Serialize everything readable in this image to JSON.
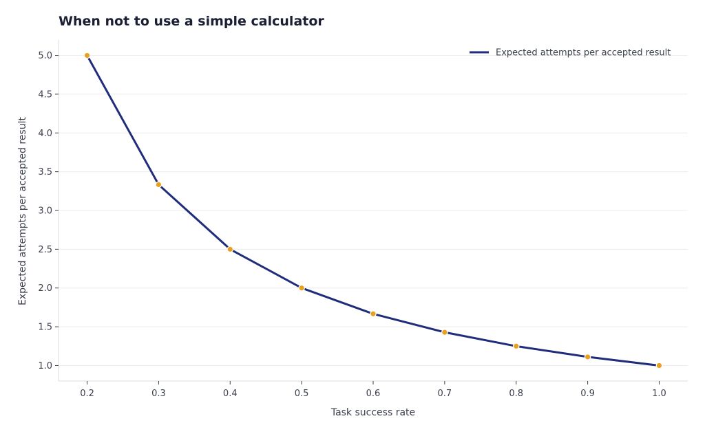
{
  "title": "When not to use a simple calculator",
  "colors": {
    "line": "#1f2d7a",
    "marker": "#e8a020",
    "marker_edge": "#ffffff",
    "grid": "#ececec",
    "axis": "#dddddd",
    "text": "#3a3f4b",
    "title": "#1a1f33"
  },
  "chart_data": {
    "type": "line",
    "title": "When not to use a simple calculator",
    "xlabel": "Task success rate",
    "ylabel": "Expected attempts per accepted result",
    "x": [
      0.2,
      0.3,
      0.4,
      0.5,
      0.6,
      0.7,
      0.8,
      0.9,
      1.0
    ],
    "series": [
      {
        "name": "Expected attempts per accepted result",
        "values": [
          5.0,
          3.333,
          2.5,
          2.0,
          1.667,
          1.429,
          1.25,
          1.111,
          1.0
        ]
      }
    ],
    "xticks": [
      "0.2",
      "0.3",
      "0.4",
      "0.5",
      "0.6",
      "0.7",
      "0.8",
      "0.9",
      "1.0"
    ],
    "yticks": [
      "1.0",
      "1.5",
      "2.0",
      "2.5",
      "3.0",
      "3.5",
      "4.0",
      "4.5",
      "5.0"
    ],
    "xlim": [
      0.16,
      1.04
    ],
    "ylim": [
      0.8,
      5.2
    ],
    "grid": "horizontal",
    "legend_position": "top-right"
  }
}
